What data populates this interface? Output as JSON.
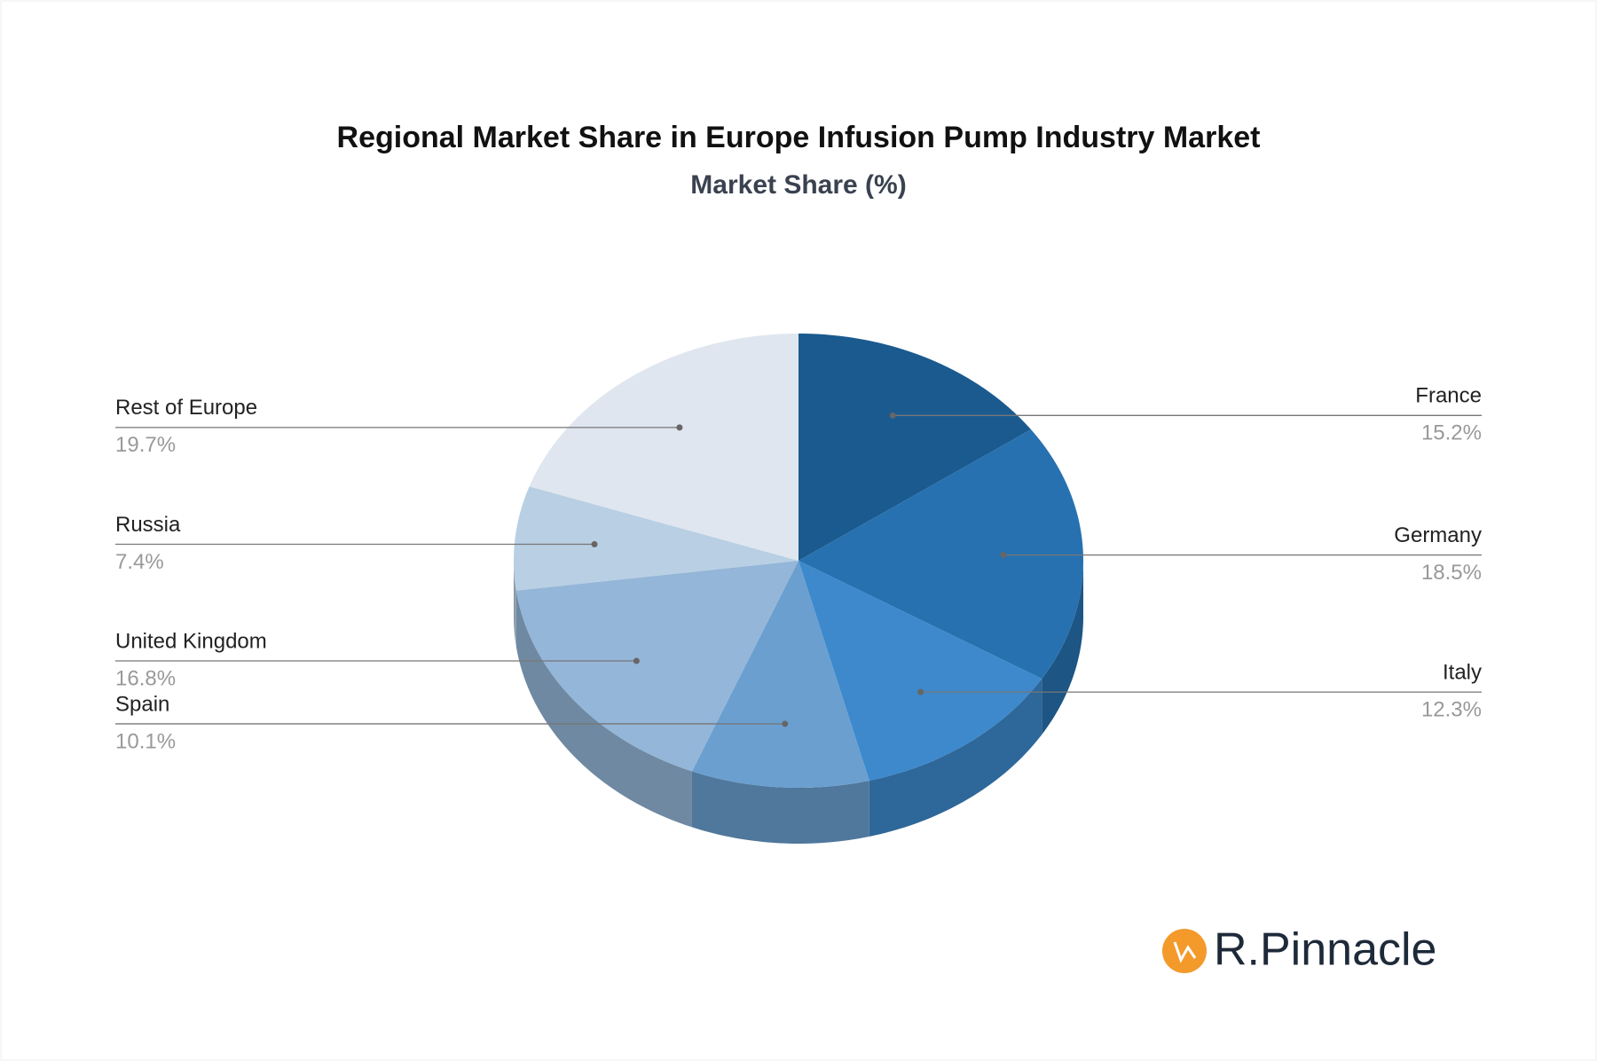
{
  "chart_data": {
    "type": "pie3d",
    "title": "Regional Market Share in Europe Infusion Pump Industry Market",
    "subtitle": "Market Share (%)",
    "categories": [
      "France",
      "Germany",
      "Italy",
      "Spain",
      "United Kingdom",
      "Russia",
      "Rest of Europe"
    ],
    "values": [
      15.2,
      18.5,
      12.3,
      10.1,
      16.8,
      7.4,
      19.7
    ],
    "value_labels": [
      "15.2%",
      "18.5%",
      "12.3%",
      "10.1%",
      "16.8%",
      "7.4%",
      "19.7%"
    ],
    "colors": [
      "#1a5a8f",
      "#2771b0",
      "#3d89cc",
      "#6a9fd0",
      "#94b6d8",
      "#b9cfe3",
      "#dfe6ef"
    ]
  },
  "brand": "R.Pinnacle"
}
